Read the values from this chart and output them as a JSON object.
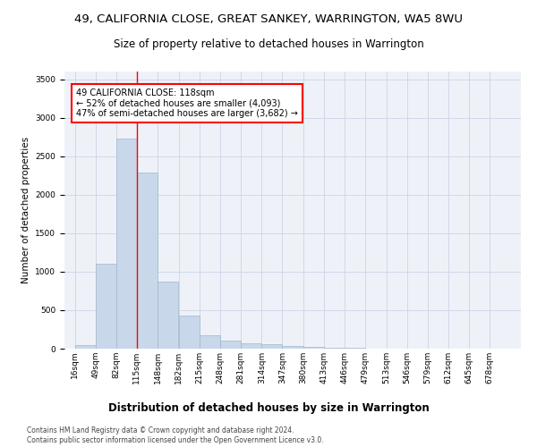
{
  "title": "49, CALIFORNIA CLOSE, GREAT SANKEY, WARRINGTON, WA5 8WU",
  "subtitle": "Size of property relative to detached houses in Warrington",
  "xlabel": "Distribution of detached houses by size in Warrington",
  "ylabel": "Number of detached properties",
  "bar_color": "#c8d8ea",
  "bar_edge_color": "#a0b8cc",
  "grid_color": "#d0d8e8",
  "background_color": "#eef2f8",
  "vline_x": 115,
  "vline_color": "red",
  "annotation_text": "49 CALIFORNIA CLOSE: 118sqm\n← 52% of detached houses are smaller (4,093)\n47% of semi-detached houses are larger (3,682) →",
  "bins": [
    16,
    49,
    82,
    115,
    148,
    182,
    215,
    248,
    281,
    314,
    347,
    380,
    413,
    446,
    479,
    513,
    546,
    579,
    612,
    645,
    678
  ],
  "bin_labels": [
    "16sqm",
    "49sqm",
    "82sqm",
    "115sqm",
    "148sqm",
    "182sqm",
    "215sqm",
    "248sqm",
    "281sqm",
    "314sqm",
    "347sqm",
    "380sqm",
    "413sqm",
    "446sqm",
    "479sqm",
    "513sqm",
    "546sqm",
    "579sqm",
    "612sqm",
    "645sqm",
    "678sqm"
  ],
  "values": [
    50,
    1100,
    2730,
    2290,
    870,
    430,
    170,
    100,
    65,
    55,
    35,
    20,
    15,
    10,
    5,
    2,
    2,
    1,
    1,
    0
  ],
  "ylim": [
    0,
    3600
  ],
  "yticks": [
    0,
    500,
    1000,
    1500,
    2000,
    2500,
    3000,
    3500
  ],
  "footer_text": "Contains HM Land Registry data © Crown copyright and database right 2024.\nContains public sector information licensed under the Open Government Licence v3.0.",
  "title_fontsize": 9.5,
  "subtitle_fontsize": 8.5,
  "xlabel_fontsize": 8.5,
  "ylabel_fontsize": 7.5,
  "tick_fontsize": 6.5,
  "annotation_fontsize": 7.0,
  "footer_fontsize": 5.5
}
